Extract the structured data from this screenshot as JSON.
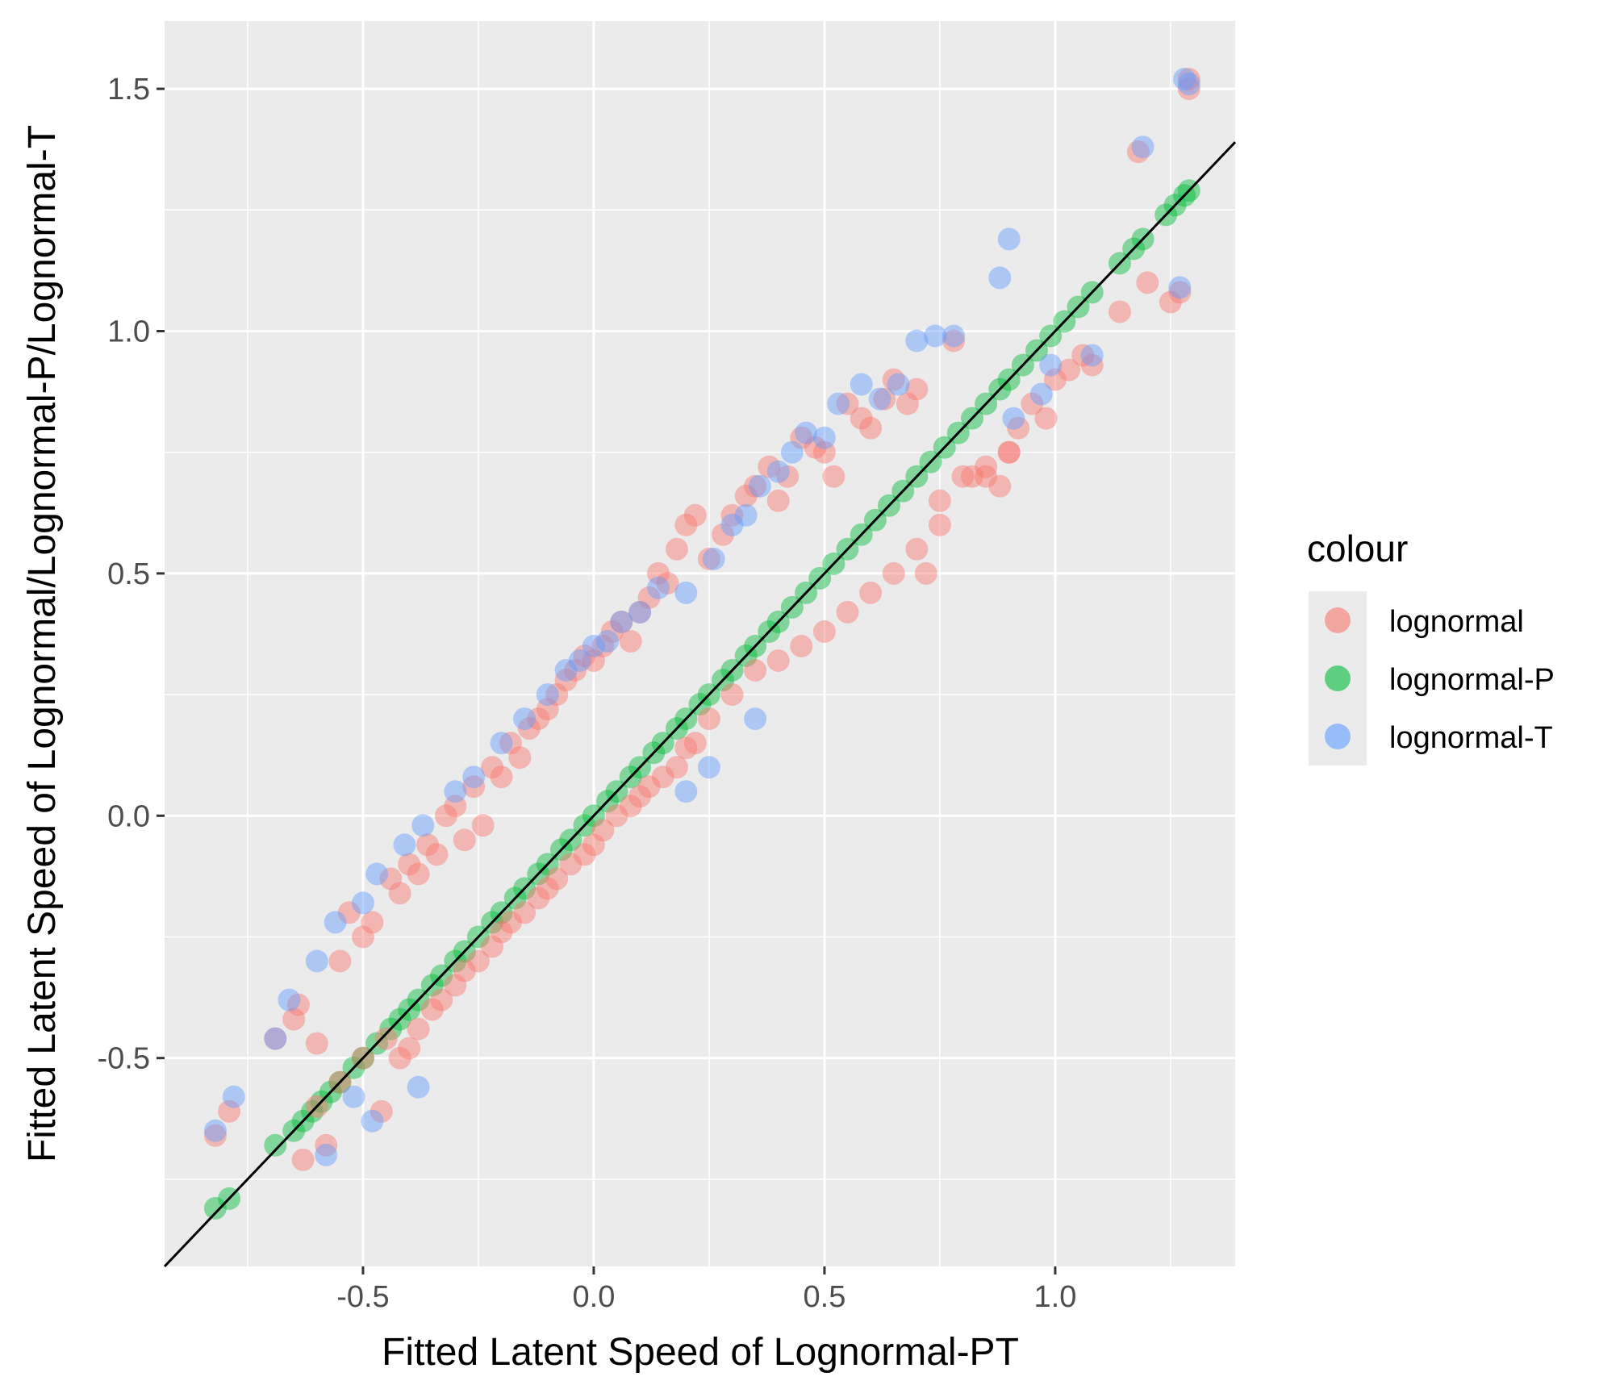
{
  "chart_data": {
    "type": "scatter",
    "title": "",
    "xlabel": "Fitted Latent Speed of Lognormal-PT",
    "ylabel": "Fitted Latent Speed of Lognormal/Lognormal-P/Lognormal-T",
    "xlim": [
      -0.93,
      1.39
    ],
    "ylim": [
      -0.93,
      1.64
    ],
    "x_ticks": [
      -0.5,
      0.0,
      0.5,
      1.0
    ],
    "x_tick_labels": [
      "-0.5",
      "0.0",
      "0.5",
      "1.0"
    ],
    "y_ticks": [
      -0.5,
      0.0,
      0.5,
      1.0,
      1.5
    ],
    "y_tick_labels": [
      "-0.5",
      "0.0",
      "0.5",
      "1.0",
      "1.5"
    ],
    "grid": true,
    "reference_line": {
      "intercept": 0,
      "slope": 1,
      "color": "#000000"
    },
    "legend": {
      "title": "colour",
      "position": "right",
      "entries": [
        {
          "label": "lognormal",
          "color": "#F8766D"
        },
        {
          "label": "lognormal-P",
          "color": "#00BA38"
        },
        {
          "label": "lognormal-T",
          "color": "#619CFF"
        }
      ]
    },
    "colors": {
      "panel": "#EBEBEB",
      "grid": "#FFFFFF",
      "text": "#4D4D4D"
    },
    "series": [
      {
        "name": "lognormal-P",
        "color": "#00BA38",
        "x": [
          -0.82,
          -0.79,
          -0.69,
          -0.65,
          -0.63,
          -0.61,
          -0.59,
          -0.57,
          -0.55,
          -0.52,
          -0.5,
          -0.47,
          -0.44,
          -0.42,
          -0.4,
          -0.38,
          -0.35,
          -0.33,
          -0.3,
          -0.28,
          -0.25,
          -0.22,
          -0.2,
          -0.17,
          -0.15,
          -0.12,
          -0.1,
          -0.07,
          -0.05,
          -0.02,
          0.0,
          0.03,
          0.05,
          0.08,
          0.1,
          0.13,
          0.15,
          0.18,
          0.2,
          0.23,
          0.25,
          0.28,
          0.3,
          0.33,
          0.35,
          0.38,
          0.4,
          0.43,
          0.46,
          0.49,
          0.52,
          0.55,
          0.58,
          0.61,
          0.64,
          0.67,
          0.7,
          0.73,
          0.76,
          0.79,
          0.82,
          0.85,
          0.88,
          0.9,
          0.93,
          0.96,
          0.99,
          1.02,
          1.05,
          1.08,
          1.14,
          1.17,
          1.19,
          1.24,
          1.26,
          1.28,
          1.29
        ],
        "y": [
          -0.81,
          -0.79,
          -0.68,
          -0.65,
          -0.63,
          -0.61,
          -0.59,
          -0.57,
          -0.55,
          -0.52,
          -0.5,
          -0.47,
          -0.44,
          -0.42,
          -0.4,
          -0.38,
          -0.35,
          -0.33,
          -0.3,
          -0.28,
          -0.25,
          -0.22,
          -0.2,
          -0.17,
          -0.15,
          -0.12,
          -0.1,
          -0.07,
          -0.05,
          -0.02,
          0.0,
          0.03,
          0.05,
          0.08,
          0.1,
          0.13,
          0.15,
          0.18,
          0.2,
          0.23,
          0.25,
          0.28,
          0.3,
          0.33,
          0.35,
          0.38,
          0.4,
          0.43,
          0.46,
          0.49,
          0.52,
          0.55,
          0.58,
          0.61,
          0.64,
          0.67,
          0.7,
          0.73,
          0.76,
          0.79,
          0.82,
          0.85,
          0.88,
          0.9,
          0.93,
          0.96,
          0.99,
          1.02,
          1.05,
          1.08,
          1.14,
          1.17,
          1.19,
          1.24,
          1.26,
          1.28,
          1.29
        ]
      },
      {
        "name": "lognormal",
        "color": "#F8766D",
        "x": [
          -0.82,
          -0.79,
          -0.69,
          -0.65,
          -0.64,
          -0.63,
          -0.6,
          -0.58,
          -0.55,
          -0.53,
          -0.5,
          -0.48,
          -0.46,
          -0.44,
          -0.42,
          -0.4,
          -0.38,
          -0.36,
          -0.34,
          -0.32,
          -0.3,
          -0.28,
          -0.26,
          -0.24,
          -0.22,
          -0.2,
          -0.18,
          -0.16,
          -0.14,
          -0.12,
          -0.1,
          -0.08,
          -0.06,
          -0.04,
          -0.02,
          0.0,
          0.02,
          0.04,
          0.06,
          0.08,
          0.1,
          0.12,
          0.14,
          0.16,
          0.18,
          0.2,
          0.22,
          0.25,
          0.28,
          0.3,
          0.33,
          0.35,
          0.38,
          0.4,
          0.42,
          0.45,
          0.48,
          0.5,
          0.52,
          0.55,
          0.58,
          0.6,
          0.63,
          0.65,
          0.68,
          0.7,
          0.72,
          0.75,
          0.78,
          0.82,
          0.85,
          0.88,
          0.9,
          0.92,
          0.95,
          0.98,
          1.0,
          1.03,
          1.06,
          1.08,
          1.14,
          1.18,
          1.2,
          1.25,
          1.27,
          1.29,
          1.29,
          -0.6,
          -0.55,
          -0.5,
          -0.45,
          -0.42,
          -0.4,
          -0.38,
          -0.35,
          -0.33,
          -0.3,
          -0.28,
          -0.25,
          -0.22,
          -0.2,
          -0.18,
          -0.15,
          -0.12,
          -0.1,
          -0.08,
          -0.05,
          -0.02,
          0.0,
          0.02,
          0.05,
          0.08,
          0.1,
          0.12,
          0.15,
          0.18,
          0.2,
          0.22,
          0.25,
          0.3,
          0.35,
          0.4,
          0.45,
          0.5,
          0.55,
          0.6,
          0.65,
          0.7,
          0.75,
          0.8,
          0.85,
          0.9
        ],
        "y": [
          -0.66,
          -0.61,
          -0.46,
          -0.42,
          -0.39,
          -0.71,
          -0.47,
          -0.68,
          -0.3,
          -0.2,
          -0.25,
          -0.22,
          -0.61,
          -0.13,
          -0.16,
          -0.1,
          -0.12,
          -0.06,
          -0.08,
          0.0,
          0.02,
          -0.05,
          0.06,
          -0.02,
          0.1,
          0.08,
          0.15,
          0.12,
          0.18,
          0.2,
          0.22,
          0.25,
          0.28,
          0.3,
          0.33,
          0.32,
          0.35,
          0.38,
          0.4,
          0.36,
          0.42,
          0.45,
          0.5,
          0.48,
          0.55,
          0.6,
          0.62,
          0.53,
          0.58,
          0.62,
          0.66,
          0.68,
          0.72,
          0.65,
          0.7,
          0.78,
          0.76,
          0.75,
          0.7,
          0.85,
          0.82,
          0.8,
          0.86,
          0.9,
          0.85,
          0.88,
          0.5,
          0.6,
          0.98,
          0.7,
          0.7,
          0.68,
          0.75,
          0.8,
          0.85,
          0.82,
          0.9,
          0.92,
          0.95,
          0.93,
          1.04,
          1.37,
          1.1,
          1.06,
          1.08,
          1.5,
          1.52,
          -0.6,
          -0.55,
          -0.5,
          -0.46,
          -0.5,
          -0.48,
          -0.44,
          -0.4,
          -0.38,
          -0.35,
          -0.32,
          -0.3,
          -0.27,
          -0.24,
          -0.22,
          -0.2,
          -0.17,
          -0.15,
          -0.13,
          -0.1,
          -0.08,
          -0.06,
          -0.03,
          0.0,
          0.02,
          0.04,
          0.06,
          0.08,
          0.1,
          0.14,
          0.15,
          0.2,
          0.25,
          0.3,
          0.32,
          0.35,
          0.38,
          0.42,
          0.46,
          0.5,
          0.55,
          0.65,
          0.7,
          0.72,
          0.75
        ]
      },
      {
        "name": "lognormal-T",
        "color": "#619CFF",
        "x": [
          -0.82,
          -0.78,
          -0.69,
          -0.66,
          -0.6,
          -0.56,
          -0.5,
          -0.47,
          -0.41,
          -0.37,
          -0.3,
          -0.26,
          -0.2,
          -0.15,
          -0.1,
          -0.06,
          -0.03,
          0.0,
          0.03,
          0.06,
          0.1,
          0.14,
          0.2,
          0.26,
          0.3,
          0.33,
          0.36,
          0.4,
          0.43,
          0.46,
          0.5,
          0.53,
          0.58,
          0.62,
          0.66,
          0.7,
          0.74,
          0.78,
          0.88,
          0.9,
          1.08,
          1.19,
          1.28,
          1.29,
          1.27,
          0.91,
          0.97,
          0.99,
          -0.38,
          -0.48,
          -0.52,
          -0.58,
          0.2,
          0.25,
          0.35
        ],
        "y": [
          -0.65,
          -0.58,
          -0.46,
          -0.38,
          -0.3,
          -0.22,
          -0.18,
          -0.12,
          -0.06,
          -0.02,
          0.05,
          0.08,
          0.15,
          0.2,
          0.25,
          0.3,
          0.32,
          0.35,
          0.36,
          0.4,
          0.42,
          0.47,
          0.46,
          0.53,
          0.6,
          0.62,
          0.68,
          0.71,
          0.75,
          0.79,
          0.78,
          0.85,
          0.89,
          0.86,
          0.89,
          0.98,
          0.99,
          0.99,
          1.11,
          1.19,
          0.95,
          1.38,
          1.52,
          1.51,
          1.09,
          0.82,
          0.87,
          0.93,
          -0.56,
          -0.63,
          -0.58,
          -0.7,
          0.05,
          0.1,
          0.2
        ]
      }
    ]
  }
}
